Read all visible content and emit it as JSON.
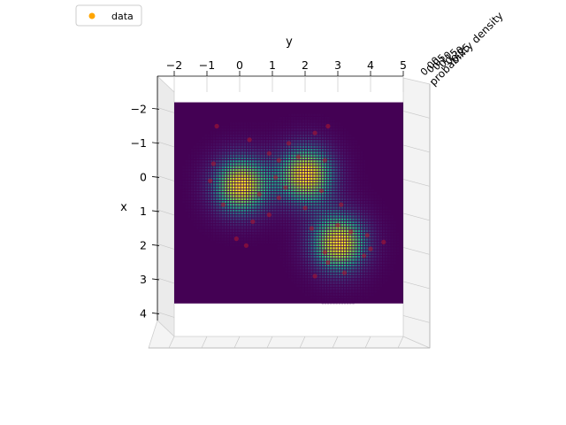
{
  "chart_data": {
    "type": "heatmap",
    "view": "3d-surface-top-down",
    "xlabel": "y",
    "ylabel": "x",
    "zlabel": "probability density",
    "y_axis_data_range": [
      -2,
      5
    ],
    "x_axis_data_range": [
      -2.4,
      4.3
    ],
    "top_ticks": [
      "−2",
      "−1",
      "0",
      "1",
      "2",
      "3",
      "4",
      "5"
    ],
    "left_ticks": [
      "−2",
      "−1",
      "0",
      "1",
      "2",
      "3",
      "4"
    ],
    "z_ticks": [
      "0.00",
      "0.05",
      "0.10",
      "0.15",
      "0.20",
      "0.25"
    ],
    "legend": {
      "label": "data",
      "placement": "top-left",
      "marker_color": "#ffa500"
    },
    "colormap": "viridis",
    "surface_extent": {
      "x": [
        -2.1,
        3.8
      ],
      "y": [
        -2,
        5
      ]
    },
    "components": [
      {
        "center_x": 0.3,
        "center_y": 0.0,
        "peak": 0.25
      },
      {
        "center_x": 0.0,
        "center_y": 2.0,
        "peak": 0.25
      },
      {
        "center_x": 2.0,
        "center_y": 3.0,
        "peak": 0.25
      }
    ],
    "points": [
      [
        -1.4,
        -0.7
      ],
      [
        -1.0,
        0.3
      ],
      [
        -0.6,
        0.9
      ],
      [
        -0.3,
        -0.8
      ],
      [
        0.2,
        -0.9
      ],
      [
        0.6,
        0.6
      ],
      [
        0.9,
        -0.5
      ],
      [
        1.2,
        0.9
      ],
      [
        1.4,
        0.4
      ],
      [
        1.9,
        -0.1
      ],
      [
        2.1,
        0.2
      ],
      [
        -0.5,
        1.8
      ],
      [
        -0.9,
        1.5
      ],
      [
        -1.2,
        2.3
      ],
      [
        -1.4,
        2.7
      ],
      [
        -0.4,
        2.6
      ],
      [
        0.4,
        1.4
      ],
      [
        0.5,
        2.5
      ],
      [
        0.7,
        1.2
      ],
      [
        1.0,
        2.0
      ],
      [
        1.6,
        2.2
      ],
      [
        1.8,
        3.9
      ],
      [
        2.3,
        2.6
      ],
      [
        2.6,
        2.7
      ],
      [
        2.9,
        3.2
      ],
      [
        3.0,
        2.3
      ],
      [
        2.4,
        3.8
      ],
      [
        2.2,
        4.0
      ],
      [
        1.7,
        3.4
      ],
      [
        2.0,
        4.4
      ],
      [
        1.5,
        3.0
      ],
      [
        0.9,
        3.1
      ],
      [
        -0.4,
        1.2
      ],
      [
        0.1,
        1.1
      ]
    ]
  }
}
